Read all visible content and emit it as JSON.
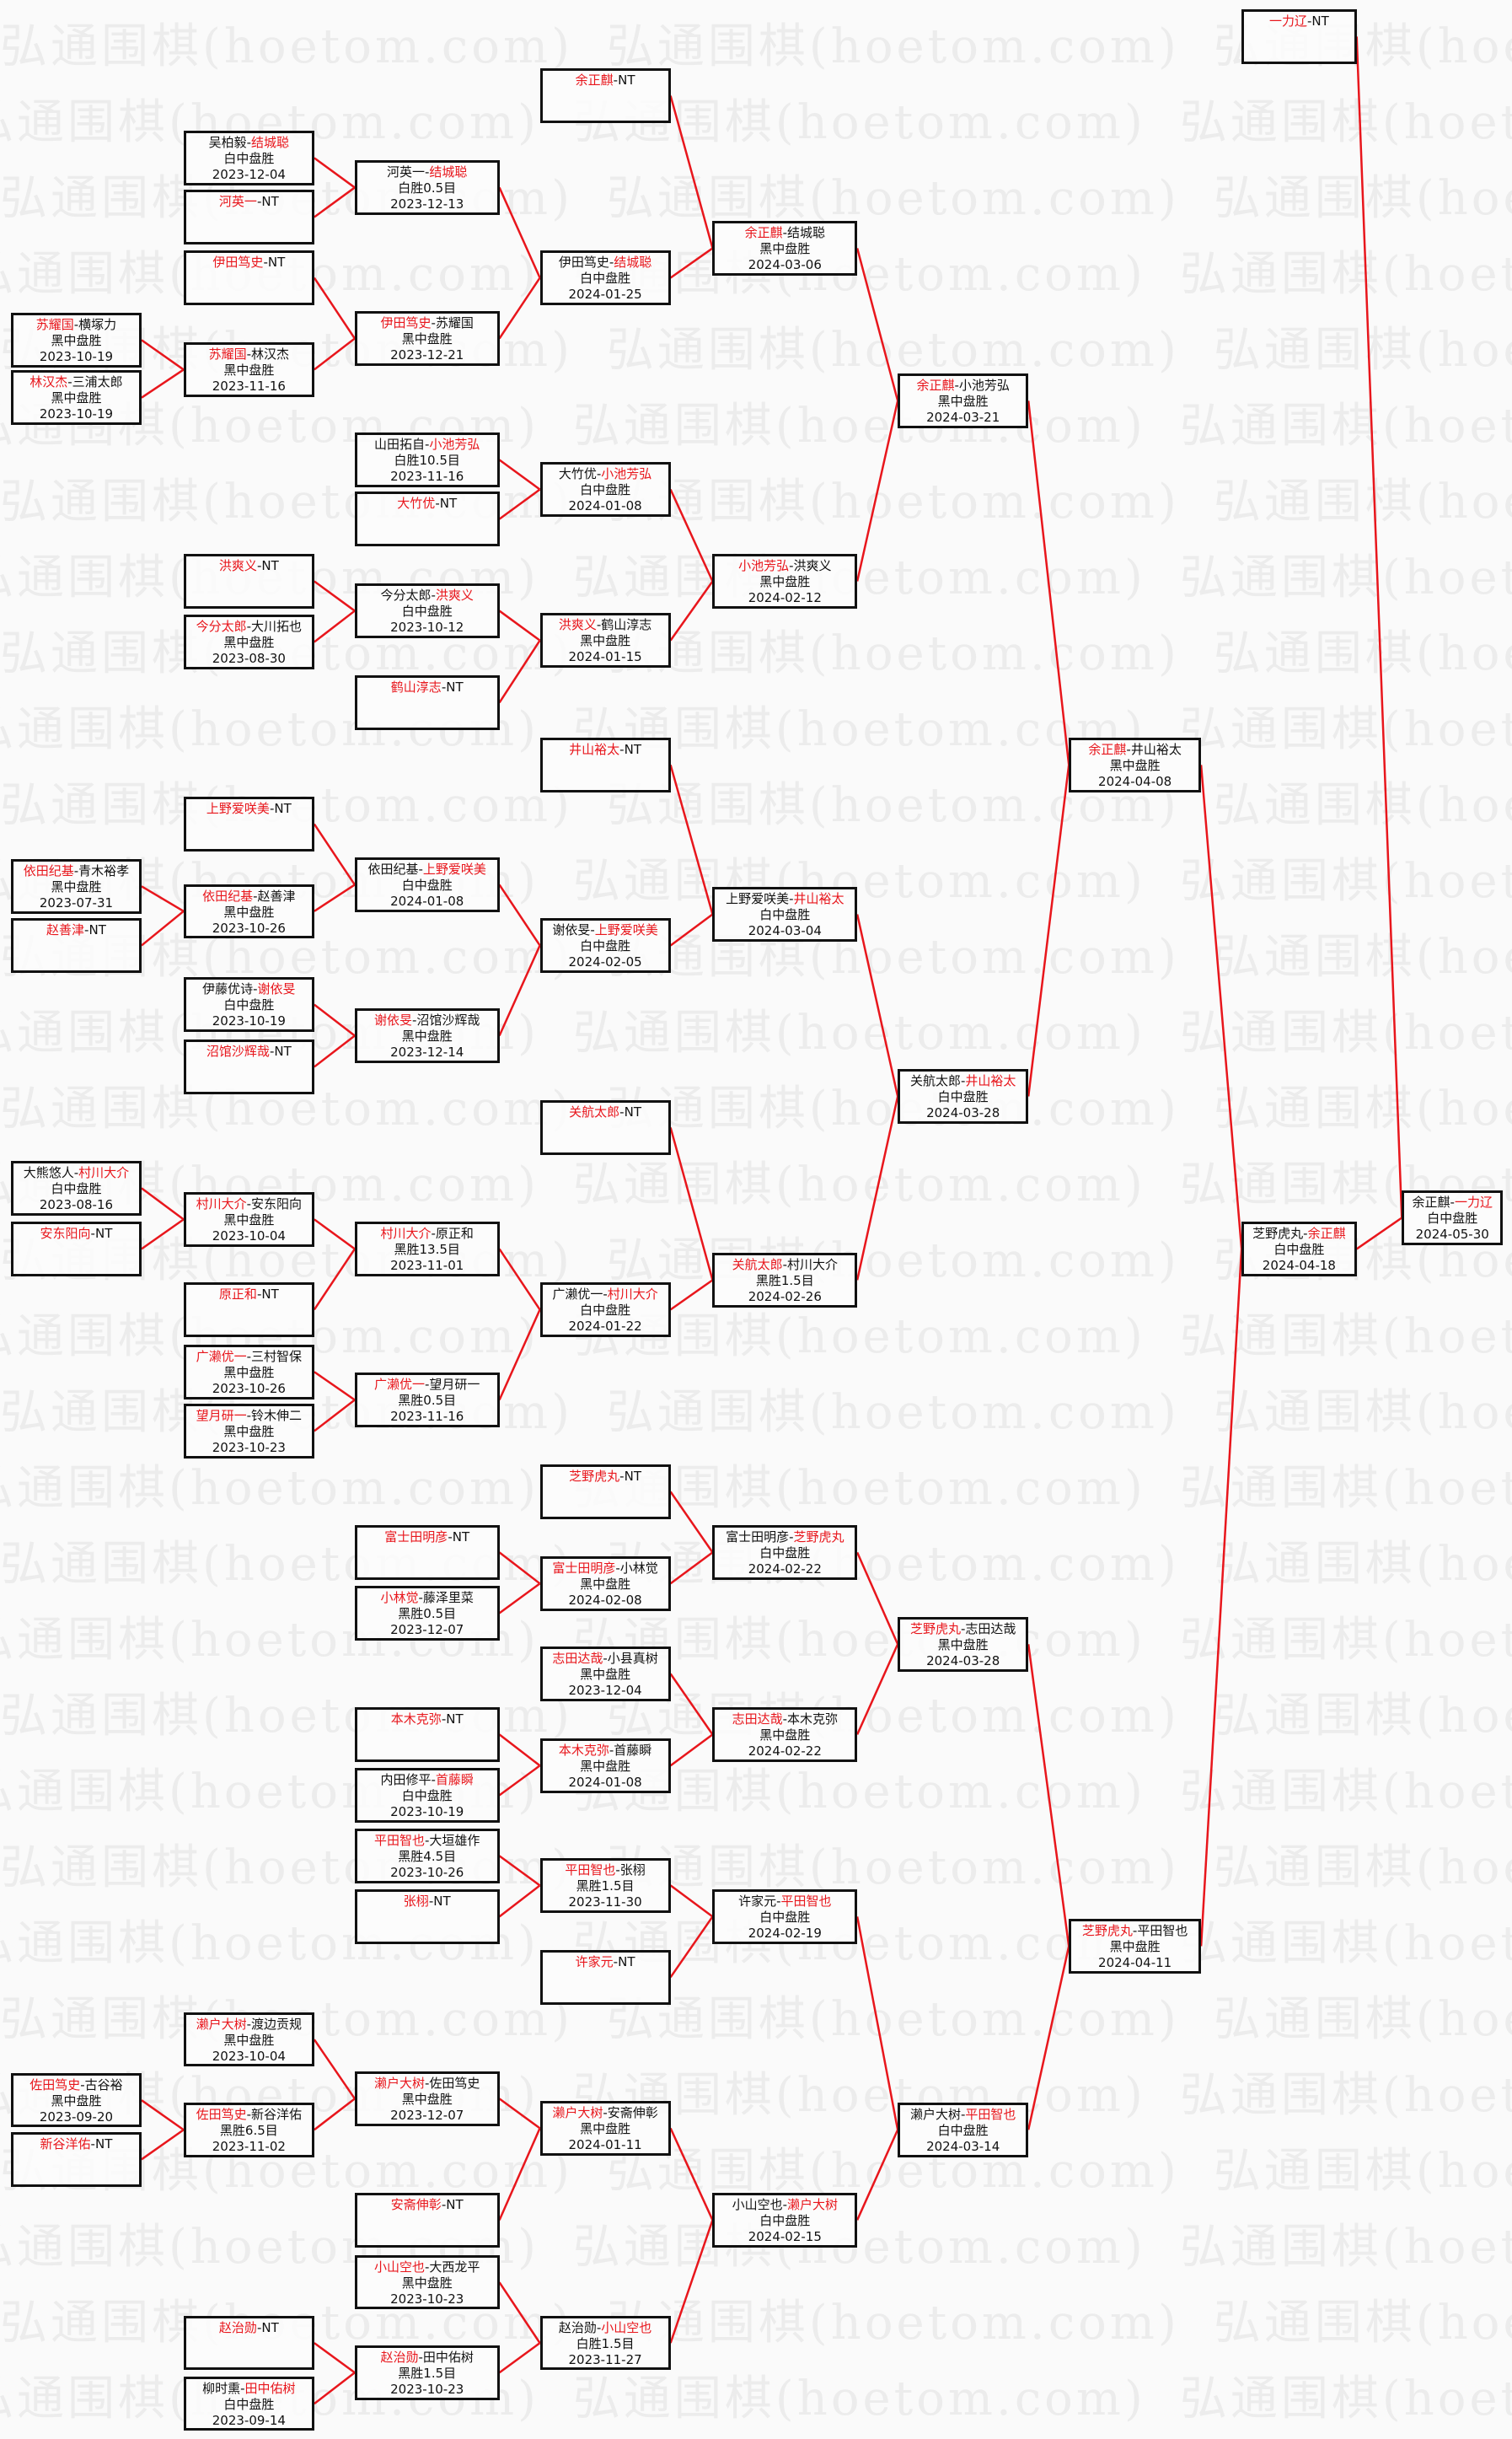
{
  "watermark": "弘通围棋(hoetom.com)",
  "colors": {
    "winner": "#e8161c",
    "line": "#e8161c",
    "border": "#111111"
  },
  "matches": [
    {
      "id": "F",
      "p": [
        "余正麒",
        "一力辽"
      ],
      "w": 1,
      "r": "白中盘胜",
      "d": "2024-05-30",
      "to": null
    },
    {
      "id": "S1",
      "p": [
        "一力辽",
        "NT"
      ],
      "w": 0,
      "r": "",
      "d": "",
      "to": "F"
    },
    {
      "id": "S2",
      "p": [
        "芝野虎丸",
        "余正麒"
      ],
      "w": 1,
      "r": "白中盘胜",
      "d": "2024-04-18",
      "to": "F"
    },
    {
      "id": "Q1",
      "p": [
        "余正麒",
        "井山裕太"
      ],
      "w": 0,
      "r": "黑中盘胜",
      "d": "2024-04-08",
      "to": "S2"
    },
    {
      "id": "Q2",
      "p": [
        "芝野虎丸",
        "平田智也"
      ],
      "w": 0,
      "r": "黑中盘胜",
      "d": "2024-04-11",
      "to": "S2"
    },
    {
      "id": "R1",
      "p": [
        "余正麒",
        "小池芳弘"
      ],
      "w": 0,
      "r": "黑中盘胜",
      "d": "2024-03-21",
      "to": "Q1"
    },
    {
      "id": "R2",
      "p": [
        "关航太郎",
        "井山裕太"
      ],
      "w": 1,
      "r": "白中盘胜",
      "d": "2024-03-28",
      "to": "Q1"
    },
    {
      "id": "R3",
      "p": [
        "芝野虎丸",
        "志田达哉"
      ],
      "w": 0,
      "r": "黑中盘胜",
      "d": "2024-03-28",
      "to": "Q2"
    },
    {
      "id": "R4",
      "p": [
        "濑户大树",
        "平田智也"
      ],
      "w": 1,
      "r": "白中盘胜",
      "d": "2024-03-14",
      "to": "Q2"
    },
    {
      "id": "a1",
      "p": [
        "余正麒",
        "结城聪"
      ],
      "w": 0,
      "r": "黑中盘胜",
      "d": "2024-03-06",
      "to": "R1"
    },
    {
      "id": "a2",
      "p": [
        "小池芳弘",
        "洪爽义"
      ],
      "w": 0,
      "r": "黑中盘胜",
      "d": "2024-02-12",
      "to": "R1"
    },
    {
      "id": "a3",
      "p": [
        "上野爱咲美",
        "井山裕太"
      ],
      "w": 1,
      "r": "白中盘胜",
      "d": "2024-03-04",
      "to": "R2"
    },
    {
      "id": "a4",
      "p": [
        "关航太郎",
        "村川大介"
      ],
      "w": 0,
      "r": "黑胜1.5目",
      "d": "2024-02-26",
      "to": "R2"
    },
    {
      "id": "a5",
      "p": [
        "富士田明彦",
        "芝野虎丸"
      ],
      "w": 1,
      "r": "白中盘胜",
      "d": "2024-02-22",
      "to": "R3"
    },
    {
      "id": "a6",
      "p": [
        "志田达哉",
        "本木克弥"
      ],
      "w": 0,
      "r": "黑中盘胜",
      "d": "2024-02-22",
      "to": "R3"
    },
    {
      "id": "a7",
      "p": [
        "许家元",
        "平田智也"
      ],
      "w": 1,
      "r": "白中盘胜",
      "d": "2024-02-19",
      "to": "R4"
    },
    {
      "id": "a8",
      "p": [
        "小山空也",
        "濑户大树"
      ],
      "w": 1,
      "r": "白中盘胜",
      "d": "2024-02-15",
      "to": "R4"
    },
    {
      "id": "b1",
      "p": [
        "余正麒",
        "NT"
      ],
      "w": 0,
      "r": "",
      "d": "",
      "to": "a1"
    },
    {
      "id": "b2",
      "p": [
        "伊田笃史",
        "结城聪"
      ],
      "w": 1,
      "r": "白中盘胜",
      "d": "2024-01-25",
      "to": "a1"
    },
    {
      "id": "b3",
      "p": [
        "大竹优",
        "小池芳弘"
      ],
      "w": 1,
      "r": "白中盘胜",
      "d": "2024-01-08",
      "to": "a2"
    },
    {
      "id": "b4",
      "p": [
        "洪爽义",
        "鹤山淳志"
      ],
      "w": 0,
      "r": "黑中盘胜",
      "d": "2024-01-15",
      "to": "a2"
    },
    {
      "id": "b5",
      "p": [
        "井山裕太",
        "NT"
      ],
      "w": 0,
      "r": "",
      "d": "",
      "to": "a3"
    },
    {
      "id": "b6",
      "p": [
        "谢依旻",
        "上野爱咲美"
      ],
      "w": 1,
      "r": "白中盘胜",
      "d": "2024-02-05",
      "to": "a3"
    },
    {
      "id": "b7",
      "p": [
        "关航太郎",
        "NT"
      ],
      "w": 0,
      "r": "",
      "d": "",
      "to": "a4"
    },
    {
      "id": "b8",
      "p": [
        "广濑优一",
        "村川大介"
      ],
      "w": 1,
      "r": "白中盘胜",
      "d": "2024-01-22",
      "to": "a4"
    },
    {
      "id": "b9",
      "p": [
        "芝野虎丸",
        "NT"
      ],
      "w": 0,
      "r": "",
      "d": "",
      "to": "a5"
    },
    {
      "id": "b10",
      "p": [
        "富士田明彦",
        "小林觉"
      ],
      "w": 0,
      "r": "黑中盘胜",
      "d": "2024-02-08",
      "to": "a5"
    },
    {
      "id": "b11",
      "p": [
        "志田达哉",
        "小县真树"
      ],
      "w": 0,
      "r": "黑中盘胜",
      "d": "2023-12-04",
      "to": "a6"
    },
    {
      "id": "b12",
      "p": [
        "本木克弥",
        "首藤瞬"
      ],
      "w": 0,
      "r": "黑中盘胜",
      "d": "2024-01-08",
      "to": "a6"
    },
    {
      "id": "b13",
      "p": [
        "平田智也",
        "张栩"
      ],
      "w": 0,
      "r": "黑胜1.5目",
      "d": "2023-11-30",
      "to": "a7"
    },
    {
      "id": "b14",
      "p": [
        "许家元",
        "NT"
      ],
      "w": 0,
      "r": "",
      "d": "",
      "to": "a7"
    },
    {
      "id": "b15",
      "p": [
        "濑户大树",
        "安斋伸彰"
      ],
      "w": 0,
      "r": "黑中盘胜",
      "d": "2024-01-11",
      "to": "a8"
    },
    {
      "id": "b16",
      "p": [
        "赵治勋",
        "小山空也"
      ],
      "w": 1,
      "r": "白胜1.5目",
      "d": "2023-11-27",
      "to": "a8"
    },
    {
      "id": "c1",
      "p": [
        "河英一",
        "结城聪"
      ],
      "w": 1,
      "r": "白胜0.5目",
      "d": "2023-12-13",
      "to": "b2"
    },
    {
      "id": "c2",
      "p": [
        "伊田笃史",
        "苏耀国"
      ],
      "w": 0,
      "r": "黑中盘胜",
      "d": "2023-12-21",
      "to": "b2"
    },
    {
      "id": "c3",
      "p": [
        "山田拓自",
        "小池芳弘"
      ],
      "w": 1,
      "r": "白胜10.5目",
      "d": "2023-11-16",
      "to": "b3"
    },
    {
      "id": "c4",
      "p": [
        "大竹优",
        "NT"
      ],
      "w": 0,
      "r": "",
      "d": "",
      "to": "b3"
    },
    {
      "id": "c5",
      "p": [
        "今分太郎",
        "洪爽义"
      ],
      "w": 1,
      "r": "白中盘胜",
      "d": "2023-10-12",
      "to": "b4"
    },
    {
      "id": "c6",
      "p": [
        "鹤山淳志",
        "NT"
      ],
      "w": 0,
      "r": "",
      "d": "",
      "to": "b4"
    },
    {
      "id": "c7",
      "p": [
        "依田纪基",
        "上野爱咲美"
      ],
      "w": 1,
      "r": "白中盘胜",
      "d": "2024-01-08",
      "to": "b6"
    },
    {
      "id": "c8",
      "p": [
        "谢依旻",
        "沼馆沙辉哉"
      ],
      "w": 0,
      "r": "黑中盘胜",
      "d": "2023-12-14",
      "to": "b6"
    },
    {
      "id": "c9",
      "p": [
        "村川大介",
        "原正和"
      ],
      "w": 0,
      "r": "黑胜13.5目",
      "d": "2023-11-01",
      "to": "b8"
    },
    {
      "id": "c10",
      "p": [
        "广濑优一",
        "望月研一"
      ],
      "w": 0,
      "r": "黑胜0.5目",
      "d": "2023-11-16",
      "to": "b8"
    },
    {
      "id": "c11",
      "p": [
        "富士田明彦",
        "NT"
      ],
      "w": 0,
      "r": "",
      "d": "",
      "to": "b10"
    },
    {
      "id": "c12",
      "p": [
        "小林觉",
        "藤泽里菜"
      ],
      "w": 0,
      "r": "黑胜0.5目",
      "d": "2023-12-07",
      "to": "b10"
    },
    {
      "id": "c13",
      "p": [
        "本木克弥",
        "NT"
      ],
      "w": 0,
      "r": "",
      "d": "",
      "to": "b12"
    },
    {
      "id": "c14",
      "p": [
        "内田修平",
        "首藤瞬"
      ],
      "w": 1,
      "r": "白中盘胜",
      "d": "2023-10-19",
      "to": "b12"
    },
    {
      "id": "c15",
      "p": [
        "平田智也",
        "大垣雄作"
      ],
      "w": 0,
      "r": "黑胜4.5目",
      "d": "2023-10-26",
      "to": "b13"
    },
    {
      "id": "c16",
      "p": [
        "张栩",
        "NT"
      ],
      "w": 0,
      "r": "",
      "d": "",
      "to": "b13"
    },
    {
      "id": "c17",
      "p": [
        "濑户大树",
        "佐田笃史"
      ],
      "w": 0,
      "r": "黑中盘胜",
      "d": "2023-12-07",
      "to": "b15"
    },
    {
      "id": "c18",
      "p": [
        "安斋伸彰",
        "NT"
      ],
      "w": 0,
      "r": "",
      "d": "",
      "to": "b15"
    },
    {
      "id": "c19",
      "p": [
        "小山空也",
        "大西龙平"
      ],
      "w": 0,
      "r": "黑中盘胜",
      "d": "2023-10-23",
      "to": "b16"
    },
    {
      "id": "c20",
      "p": [
        "赵治勋",
        "田中佑树"
      ],
      "w": 0,
      "r": "黑胜1.5目",
      "d": "2023-10-23",
      "to": "b16"
    },
    {
      "id": "d1",
      "p": [
        "吴柏毅",
        "结城聪"
      ],
      "w": 1,
      "r": "白中盘胜",
      "d": "2023-12-04",
      "to": "c1"
    },
    {
      "id": "d2",
      "p": [
        "河英一",
        "NT"
      ],
      "w": 0,
      "r": "",
      "d": "",
      "to": "c1"
    },
    {
      "id": "d3",
      "p": [
        "伊田笃史",
        "NT"
      ],
      "w": 0,
      "r": "",
      "d": "",
      "to": "c2"
    },
    {
      "id": "d4",
      "p": [
        "苏耀国",
        "林汉杰"
      ],
      "w": 0,
      "r": "黑中盘胜",
      "d": "2023-11-16",
      "to": "c2"
    },
    {
      "id": "d5",
      "p": [
        "洪爽义",
        "NT"
      ],
      "w": 0,
      "r": "",
      "d": "",
      "to": "c5"
    },
    {
      "id": "d6",
      "p": [
        "今分太郎",
        "大川拓也"
      ],
      "w": 0,
      "r": "黑中盘胜",
      "d": "2023-08-30",
      "to": "c5"
    },
    {
      "id": "d7",
      "p": [
        "上野爱咲美",
        "NT"
      ],
      "w": 0,
      "r": "",
      "d": "",
      "to": "c7"
    },
    {
      "id": "d8",
      "p": [
        "依田纪基",
        "赵善津"
      ],
      "w": 0,
      "r": "黑中盘胜",
      "d": "2023-10-26",
      "to": "c7"
    },
    {
      "id": "d9",
      "p": [
        "伊藤优诗",
        "谢依旻"
      ],
      "w": 1,
      "r": "白中盘胜",
      "d": "2023-10-19",
      "to": "c8"
    },
    {
      "id": "d10",
      "p": [
        "沼馆沙辉哉",
        "NT"
      ],
      "w": 0,
      "r": "",
      "d": "",
      "to": "c8"
    },
    {
      "id": "d11",
      "p": [
        "村川大介",
        "安东阳向"
      ],
      "w": 0,
      "r": "黑中盘胜",
      "d": "2023-10-04",
      "to": "c9"
    },
    {
      "id": "d12",
      "p": [
        "原正和",
        "NT"
      ],
      "w": 0,
      "r": "",
      "d": "",
      "to": "c9"
    },
    {
      "id": "d13",
      "p": [
        "广濑优一",
        "三村智保"
      ],
      "w": 0,
      "r": "黑中盘胜",
      "d": "2023-10-26",
      "to": "c10"
    },
    {
      "id": "d14",
      "p": [
        "望月研一",
        "铃木伸二"
      ],
      "w": 0,
      "r": "黑中盘胜",
      "d": "2023-10-23",
      "to": "c10"
    },
    {
      "id": "d15",
      "p": [
        "濑户大树",
        "渡边贡规"
      ],
      "w": 0,
      "r": "黑中盘胜",
      "d": "2023-10-04",
      "to": "c17"
    },
    {
      "id": "d16",
      "p": [
        "佐田笃史",
        "新谷洋佑"
      ],
      "w": 0,
      "r": "黑胜6.5目",
      "d": "2023-11-02",
      "to": "c17"
    },
    {
      "id": "d17",
      "p": [
        "赵治勋",
        "NT"
      ],
      "w": 0,
      "r": "",
      "d": "",
      "to": "c20"
    },
    {
      "id": "d18",
      "p": [
        "柳时熏",
        "田中佑树"
      ],
      "w": 1,
      "r": "白中盘胜",
      "d": "2023-09-14",
      "to": "c20"
    },
    {
      "id": "e1",
      "p": [
        "苏耀国",
        "横塚力"
      ],
      "w": 0,
      "r": "黑中盘胜",
      "d": "2023-10-19",
      "to": "d4"
    },
    {
      "id": "e2",
      "p": [
        "林汉杰",
        "三浦太郎"
      ],
      "w": 0,
      "r": "黑中盘胜",
      "d": "2023-10-19",
      "to": "d4"
    },
    {
      "id": "e3",
      "p": [
        "依田纪基",
        "青木裕孝"
      ],
      "w": 0,
      "r": "黑中盘胜",
      "d": "2023-07-31",
      "to": "d8"
    },
    {
      "id": "e4",
      "p": [
        "赵善津",
        "NT"
      ],
      "w": 0,
      "r": "",
      "d": "",
      "to": "d8"
    },
    {
      "id": "e5",
      "p": [
        "大熊悠人",
        "村川大介"
      ],
      "w": 1,
      "r": "白中盘胜",
      "d": "2023-08-16",
      "to": "d11"
    },
    {
      "id": "e6",
      "p": [
        "安东阳向",
        "NT"
      ],
      "w": 0,
      "r": "",
      "d": "",
      "to": "d11"
    },
    {
      "id": "e7",
      "p": [
        "佐田笃史",
        "古谷裕"
      ],
      "w": 0,
      "r": "黑中盘胜",
      "d": "2023-09-20",
      "to": "d16"
    },
    {
      "id": "e8",
      "p": [
        "新谷洋佑",
        "NT"
      ],
      "w": 0,
      "r": "",
      "d": "",
      "to": "d16"
    }
  ]
}
